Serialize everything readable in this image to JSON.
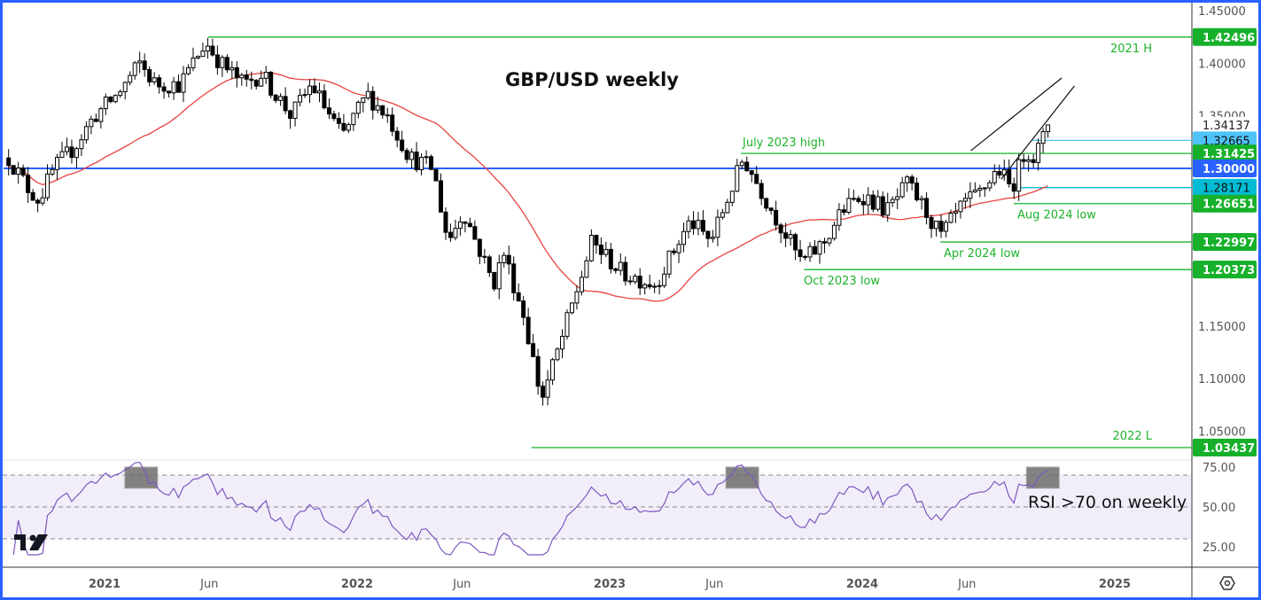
{
  "chart_data": {
    "type": "candlestick",
    "title": "GBP/USD weekly",
    "symbol": "GBP/USD",
    "interval": "weekly",
    "ylim": [
      1.0,
      1.46
    ],
    "price_axis_ticks": [
      "1.45000",
      "1.40000",
      "1.35000",
      "1.15000",
      "1.10000",
      "1.05000"
    ],
    "time_axis_ticks": [
      {
        "label": "2021",
        "t": 2021.0
      },
      {
        "label": "Jun",
        "t": 2021.415
      },
      {
        "label": "2022",
        "t": 2022.0
      },
      {
        "label": "Jun",
        "t": 2022.415
      },
      {
        "label": "2023",
        "t": 2023.0
      },
      {
        "label": "Jun",
        "t": 2023.415
      },
      {
        "label": "2024",
        "t": 2024.0
      },
      {
        "label": "Jun",
        "t": 2024.415
      },
      {
        "label": "2025",
        "t": 2025.0
      }
    ],
    "close_anchors": [
      [
        2020.62,
        1.31
      ],
      [
        2020.7,
        1.28
      ],
      [
        2020.74,
        1.27
      ],
      [
        2020.8,
        1.3
      ],
      [
        2020.88,
        1.32
      ],
      [
        2020.96,
        1.35
      ],
      [
        2021.05,
        1.37
      ],
      [
        2021.14,
        1.4
      ],
      [
        2021.2,
        1.38
      ],
      [
        2021.3,
        1.38
      ],
      [
        2021.4,
        1.42
      ],
      [
        2021.46,
        1.4
      ],
      [
        2021.55,
        1.38
      ],
      [
        2021.62,
        1.39
      ],
      [
        2021.74,
        1.35
      ],
      [
        2021.82,
        1.38
      ],
      [
        2021.94,
        1.33
      ],
      [
        2022.04,
        1.37
      ],
      [
        2022.12,
        1.35
      ],
      [
        2022.21,
        1.31
      ],
      [
        2022.3,
        1.3
      ],
      [
        2022.36,
        1.23
      ],
      [
        2022.42,
        1.26
      ],
      [
        2022.54,
        1.19
      ],
      [
        2022.58,
        1.22
      ],
      [
        2022.66,
        1.16
      ],
      [
        2022.73,
        1.08
      ],
      [
        2022.8,
        1.13
      ],
      [
        2022.93,
        1.23
      ],
      [
        2023.05,
        1.2
      ],
      [
        2023.18,
        1.19
      ],
      [
        2023.32,
        1.25
      ],
      [
        2023.4,
        1.23
      ],
      [
        2023.53,
        1.31
      ],
      [
        2023.62,
        1.27
      ],
      [
        2023.76,
        1.21
      ],
      [
        2023.85,
        1.23
      ],
      [
        2023.92,
        1.26
      ],
      [
        2024.0,
        1.275
      ],
      [
        2024.1,
        1.26
      ],
      [
        2024.18,
        1.285
      ],
      [
        2024.25,
        1.26
      ],
      [
        2024.31,
        1.235
      ],
      [
        2024.4,
        1.265
      ],
      [
        2024.46,
        1.275
      ],
      [
        2024.54,
        1.3
      ],
      [
        2024.59,
        1.28
      ],
      [
        2024.65,
        1.32
      ],
      [
        2024.68,
        1.31
      ],
      [
        2024.72,
        1.33
      ],
      [
        2024.74,
        1.34
      ]
    ],
    "moving_average": {
      "type": "SMA",
      "period": 30,
      "color": "#e8423f"
    },
    "current_price": {
      "value": 1.34137,
      "label": "1.34137"
    },
    "levels": [
      {
        "price": 1.42496,
        "label": "1.42496",
        "color": "#16b02a",
        "from": 2021.41,
        "note": "2021 H"
      },
      {
        "price": 1.32665,
        "label": "1.32665",
        "color": "#4fc3f7",
        "from": 2024.675,
        "note": ""
      },
      {
        "price": 1.31425,
        "label": "1.31425",
        "color": "#16b02a",
        "from": 2023.52,
        "note": "July 2023 high"
      },
      {
        "price": 1.3,
        "label": "1.30000",
        "color": "#2962ff",
        "from": 2020.6,
        "note": ""
      },
      {
        "price": 1.28171,
        "label": "1.28171",
        "color": "#00bcd4",
        "from": 2024.6,
        "note": ""
      },
      {
        "price": 1.26651,
        "label": "1.26651",
        "color": "#16b02a",
        "from": 2024.6,
        "note": "Aug 2024 low"
      },
      {
        "price": 1.22997,
        "label": "1.22997",
        "color": "#16b02a",
        "from": 2024.31,
        "note": "Apr 2024 low"
      },
      {
        "price": 1.20373,
        "label": "1.20373",
        "color": "#16b02a",
        "from": 2023.77,
        "note": "Oct 2023 low"
      },
      {
        "price": 1.03437,
        "label": "1.03437",
        "color": "#16b02a",
        "from": 2022.69,
        "note": "2022 L"
      }
    ],
    "channel": {
      "upper": [
        [
          2024.43,
          1.3168
        ],
        [
          2024.79,
          1.386
        ]
      ],
      "lower": [
        [
          2024.55,
          1.2898
        ],
        [
          2024.84,
          1.3784
        ]
      ]
    },
    "rsi": {
      "period": 14,
      "ticks": [
        "75.00",
        "50.00",
        "25.00"
      ],
      "bands": [
        70,
        50,
        30
      ],
      "color": "#7e57c2",
      "overbought_highlights": [
        [
          2021.08,
          2021.21
        ],
        [
          2023.46,
          2023.59
        ],
        [
          2024.65,
          2024.78
        ]
      ],
      "annotation": "RSI >70 on weekly"
    }
  }
}
